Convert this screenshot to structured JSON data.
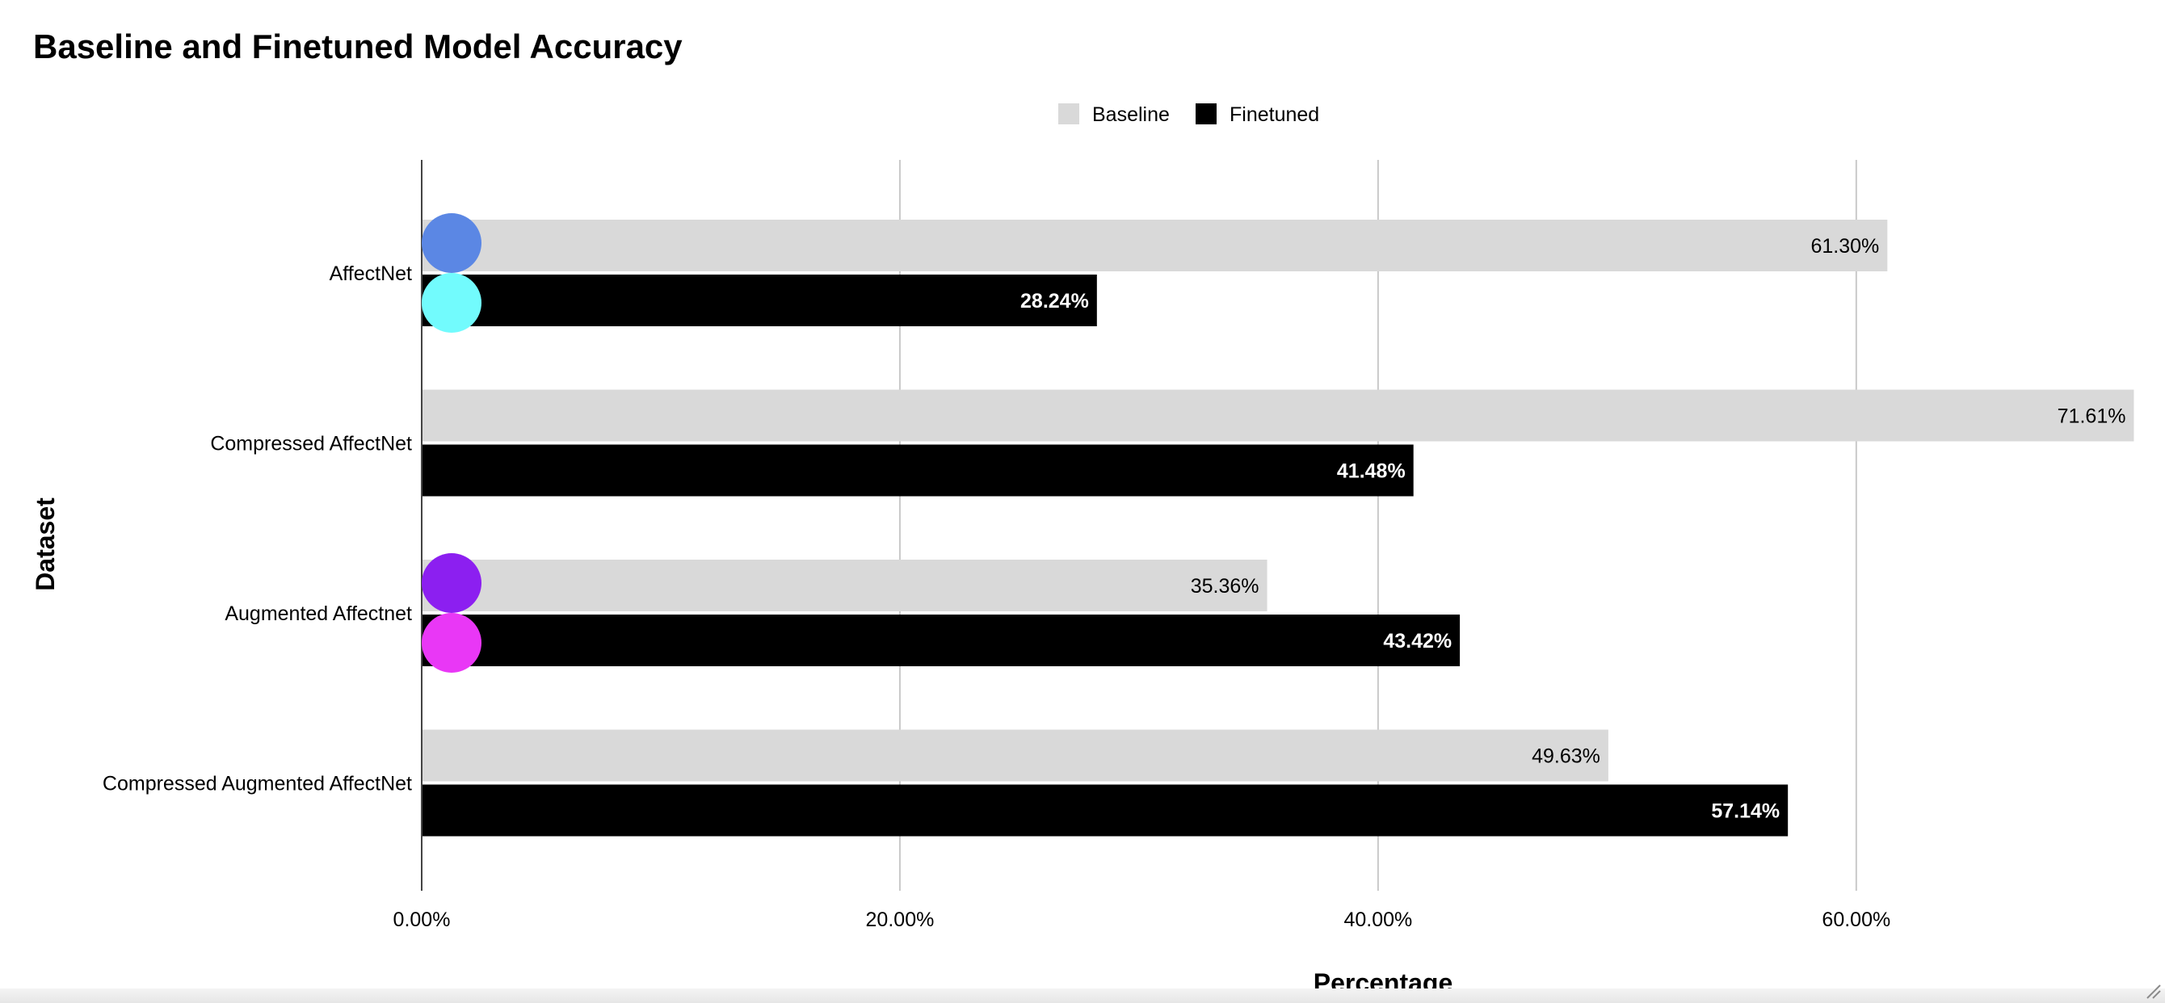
{
  "chart_data": {
    "type": "bar",
    "orientation": "horizontal",
    "title": "Baseline and Finetuned Model Accuracy",
    "xlabel": "Percentage",
    "ylabel": "Dataset",
    "categories": [
      "AffectNet",
      "Compressed AffectNet",
      "Augmented Affectnet",
      "Compressed Augmented AffectNet"
    ],
    "series": [
      {
        "name": "Baseline",
        "color": "#d9d9d9",
        "label_color": "#000000",
        "values": [
          61.3,
          71.61,
          35.36,
          49.63
        ],
        "labels": [
          "61.30%",
          "71.61%",
          "35.36%",
          "49.63%"
        ]
      },
      {
        "name": "Finetuned",
        "color": "#000000",
        "label_color": "#ffffff",
        "values": [
          28.24,
          41.48,
          43.42,
          57.14
        ],
        "labels": [
          "28.24%",
          "41.48%",
          "43.42%",
          "57.14%"
        ]
      }
    ],
    "xlim": [
      0,
      72
    ],
    "xticks": [
      0,
      20,
      40,
      60
    ],
    "xtick_labels": [
      "0.00%",
      "20.00%",
      "40.00%",
      "60.00%"
    ],
    "grid": true,
    "legend_position": "top-center",
    "markers": [
      {
        "category_index": 0,
        "series_index": 0,
        "color": "#5b87e4"
      },
      {
        "category_index": 0,
        "series_index": 1,
        "color": "#72fbfd"
      },
      {
        "category_index": 2,
        "series_index": 0,
        "color": "#8c1ff0"
      },
      {
        "category_index": 2,
        "series_index": 1,
        "color": "#e937f6"
      }
    ]
  }
}
